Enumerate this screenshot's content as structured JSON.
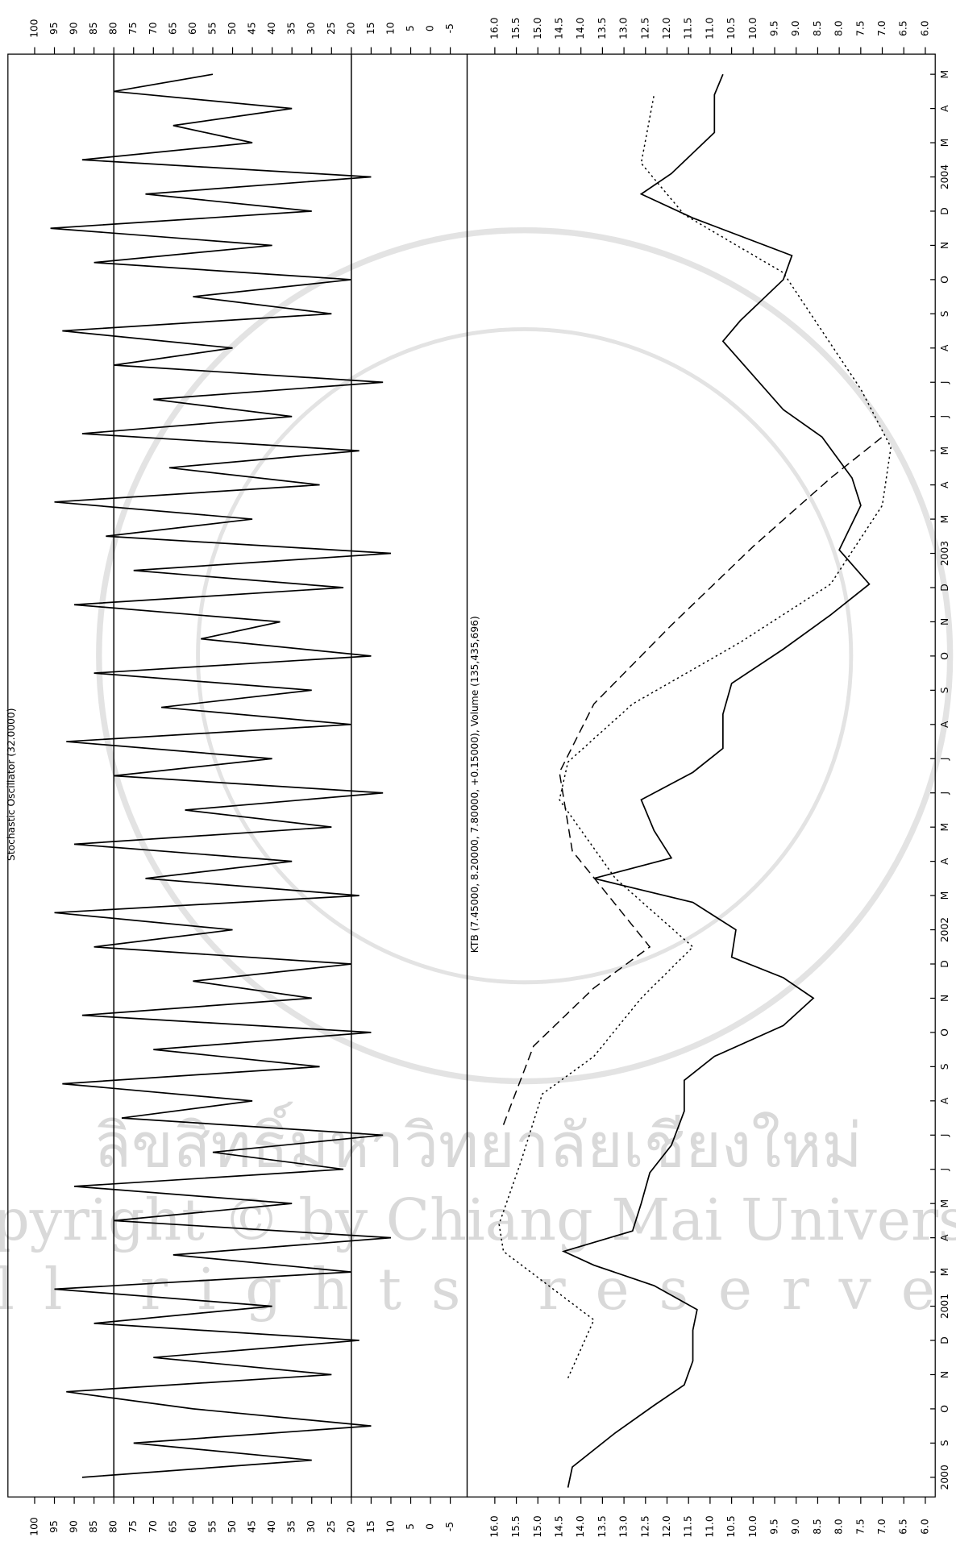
{
  "chart_data": [
    {
      "type": "line",
      "title": "Stochastic Oscillator (32.0000)",
      "xlim": [
        -0.4,
        41.3
      ],
      "ylim": [
        -5,
        100
      ],
      "yticks": [
        100,
        95,
        90,
        85,
        80,
        75,
        70,
        65,
        60,
        55,
        50,
        45,
        40,
        35,
        30,
        25,
        20,
        15,
        10,
        5,
        0,
        -5
      ],
      "reference_lines": [
        80,
        20
      ],
      "series": [
        {
          "color": "#000000",
          "style": "solid",
          "x": [
            0,
            0.5,
            1,
            1.5,
            2,
            2.5,
            3,
            3.5,
            4,
            4.5,
            5,
            5.5,
            6,
            6.5,
            7,
            7.5,
            8,
            8.5,
            9,
            9.5,
            10,
            10.5,
            11,
            11.5,
            12,
            12.5,
            13,
            13.5,
            14,
            14.5,
            15,
            15.5,
            16,
            16.5,
            17,
            17.5,
            18,
            18.5,
            19,
            19.5,
            20,
            20.5,
            21,
            21.5,
            22,
            22.5,
            23,
            23.5,
            24,
            24.5,
            25,
            25.5,
            26,
            26.5,
            27,
            27.5,
            28,
            28.5,
            29,
            29.5,
            30,
            30.5,
            31,
            31.5,
            32,
            32.5,
            33,
            33.5,
            34,
            34.5,
            35,
            35.5,
            36,
            36.5,
            37,
            37.5,
            38,
            38.5,
            39,
            39.5,
            40,
            40.5,
            41
          ],
          "values": [
            88,
            30,
            75,
            15,
            60,
            92,
            25,
            70,
            18,
            85,
            40,
            95,
            20,
            65,
            10,
            80,
            35,
            90,
            22,
            55,
            12,
            78,
            45,
            93,
            28,
            70,
            15,
            88,
            30,
            60,
            20,
            85,
            50,
            95,
            18,
            72,
            35,
            90,
            25,
            62,
            12,
            80,
            40,
            92,
            20,
            68,
            30,
            85,
            15,
            58,
            38,
            90,
            22,
            75,
            10,
            82,
            45,
            95,
            28,
            66,
            18,
            88,
            35,
            70,
            12,
            80,
            50,
            93,
            25,
            60,
            20,
            85,
            40,
            96,
            30,
            72,
            15,
            88,
            45,
            65,
            35,
            80,
            55
          ]
        }
      ]
    },
    {
      "type": "line",
      "title": "KTB (7.45000, 8.20000, 7.80000, +0.15000), Volume (135,435,696)",
      "xlim": [
        -0.4,
        41.3
      ],
      "ylim": [
        6,
        16
      ],
      "yticks": [
        {
          "value": 16,
          "label": "16.0"
        },
        15.5,
        {
          "value": 15,
          "label": "15.0"
        },
        14.5,
        {
          "value": 14,
          "label": "14.0"
        },
        13.5,
        {
          "value": 13,
          "label": "13.0"
        },
        12.5,
        {
          "value": 12,
          "label": "12.0"
        },
        11.5,
        {
          "value": 11,
          "label": "11.0"
        },
        10.5,
        {
          "value": 10,
          "label": "10.0"
        },
        9.5,
        {
          "value": 9,
          "label": "9.0"
        },
        8.5,
        {
          "value": 8,
          "label": "8.0"
        },
        7.5,
        {
          "value": 7,
          "label": "7.0"
        },
        6.5,
        {
          "value": 6,
          "label": "6.0"
        }
      ],
      "xticks": [
        {
          "value": 0,
          "label": "2000"
        },
        {
          "value": 1,
          "label": "S"
        },
        {
          "value": 2,
          "label": "O"
        },
        {
          "value": 3,
          "label": "N"
        },
        {
          "value": 4,
          "label": "D"
        },
        {
          "value": 5,
          "label": "2001"
        },
        {
          "value": 6,
          "label": "M"
        },
        {
          "value": 7,
          "label": "A"
        },
        {
          "value": 8,
          "label": "M"
        },
        {
          "value": 9,
          "label": "J"
        },
        {
          "value": 10,
          "label": "J"
        },
        {
          "value": 11,
          "label": "A"
        },
        {
          "value": 12,
          "label": "S"
        },
        {
          "value": 13,
          "label": "O"
        },
        {
          "value": 14,
          "label": "N"
        },
        {
          "value": 15,
          "label": "D"
        },
        {
          "value": 16,
          "label": "2002"
        },
        {
          "value": 17,
          "label": "M"
        },
        {
          "value": 18,
          "label": "A"
        },
        {
          "value": 19,
          "label": "M"
        },
        {
          "value": 20,
          "label": "J"
        },
        {
          "value": 21,
          "label": "J"
        },
        {
          "value": 22,
          "label": "A"
        },
        {
          "value": 23,
          "label": "S"
        },
        {
          "value": 24,
          "label": "O"
        },
        {
          "value": 25,
          "label": "N"
        },
        {
          "value": 26,
          "label": "D"
        },
        {
          "value": 27,
          "label": "2003"
        },
        {
          "value": 28,
          "label": "M"
        },
        {
          "value": 29,
          "label": "A"
        },
        {
          "value": 30,
          "label": "M"
        },
        {
          "value": 31,
          "label": "J"
        },
        {
          "value": 32,
          "label": "J"
        },
        {
          "value": 33,
          "label": "A"
        },
        {
          "value": 34,
          "label": "S"
        },
        {
          "value": 35,
          "label": "O"
        },
        {
          "value": 36,
          "label": "N"
        },
        {
          "value": 37,
          "label": "D"
        },
        {
          "value": 38,
          "label": "2004"
        },
        {
          "value": 39,
          "label": "M"
        },
        {
          "value": 40,
          "label": "A"
        },
        {
          "value": 41,
          "label": "M"
        }
      ],
      "series": [
        {
          "color": "#000000",
          "style": "solid",
          "x": [
            -0.3,
            0.3,
            1.3,
            2.1,
            2.7,
            3.4,
            4.3,
            4.9,
            5.6,
            6.2,
            6.6,
            7.2,
            8.0,
            8.9,
            9.7,
            10.7,
            11.6,
            12.3,
            13.2,
            14.0,
            14.6,
            15.2,
            16.0,
            16.8,
            17.5,
            18.1,
            18.9,
            19.8,
            20.6,
            21.3,
            22.3,
            23.2,
            24.2,
            25.2,
            26.1,
            27.1,
            28.4,
            29.2,
            30.4,
            31.2,
            32.2,
            33.2,
            33.8,
            35.0,
            35.7,
            36.8,
            37.5,
            38.1,
            39.3,
            40.4,
            41.0
          ],
          "values": [
            14.3,
            14.2,
            13.2,
            12.3,
            11.6,
            11.4,
            11.4,
            11.3,
            12.3,
            13.7,
            14.4,
            12.8,
            12.6,
            12.4,
            11.9,
            11.6,
            11.6,
            10.9,
            9.3,
            8.6,
            9.3,
            10.5,
            10.4,
            11.4,
            13.7,
            11.9,
            12.3,
            12.6,
            11.4,
            10.7,
            10.7,
            10.5,
            9.3,
            8.2,
            7.3,
            8.0,
            7.5,
            7.7,
            8.4,
            9.3,
            10.0,
            10.7,
            10.3,
            9.3,
            9.1,
            11.4,
            12.6,
            11.9,
            10.9,
            10.9,
            10.7
          ]
        },
        {
          "color": "#000000",
          "style": "dotted",
          "x": [
            2.9,
            4.6,
            6.6,
            7.4,
            9.2,
            11.2,
            12.3,
            14.0,
            15.5,
            17.5,
            19.8,
            20.9,
            22.6,
            24.4,
            26.1,
            28.4,
            30.1,
            31.8,
            33.5,
            35.2,
            36.9,
            38.4,
            40.4
          ],
          "values": [
            14.3,
            13.7,
            15.8,
            15.9,
            15.4,
            14.9,
            13.7,
            12.6,
            11.4,
            13.2,
            14.5,
            14.3,
            12.8,
            10.3,
            8.2,
            7.0,
            6.8,
            7.5,
            8.4,
            9.3,
            11.6,
            12.6,
            12.3
          ]
        },
        {
          "color": "#000000",
          "style": "dashed",
          "x": [
            10.3,
            12.6,
            14.3,
            15.5,
            18.3,
            20.6,
            22.6,
            24.9,
            27.2,
            29.2,
            30.4
          ],
          "values": [
            15.8,
            15.1,
            13.7,
            12.4,
            14.2,
            14.5,
            13.7,
            11.9,
            10.0,
            8.2,
            7.0
          ]
        }
      ]
    }
  ],
  "watermark": {
    "lines": [
      "ลิขสิทธิ์มหาวิทยาลัยเชียงใหม่",
      "Copyright © by Chiang Mai University",
      "All rights reserved"
    ]
  }
}
